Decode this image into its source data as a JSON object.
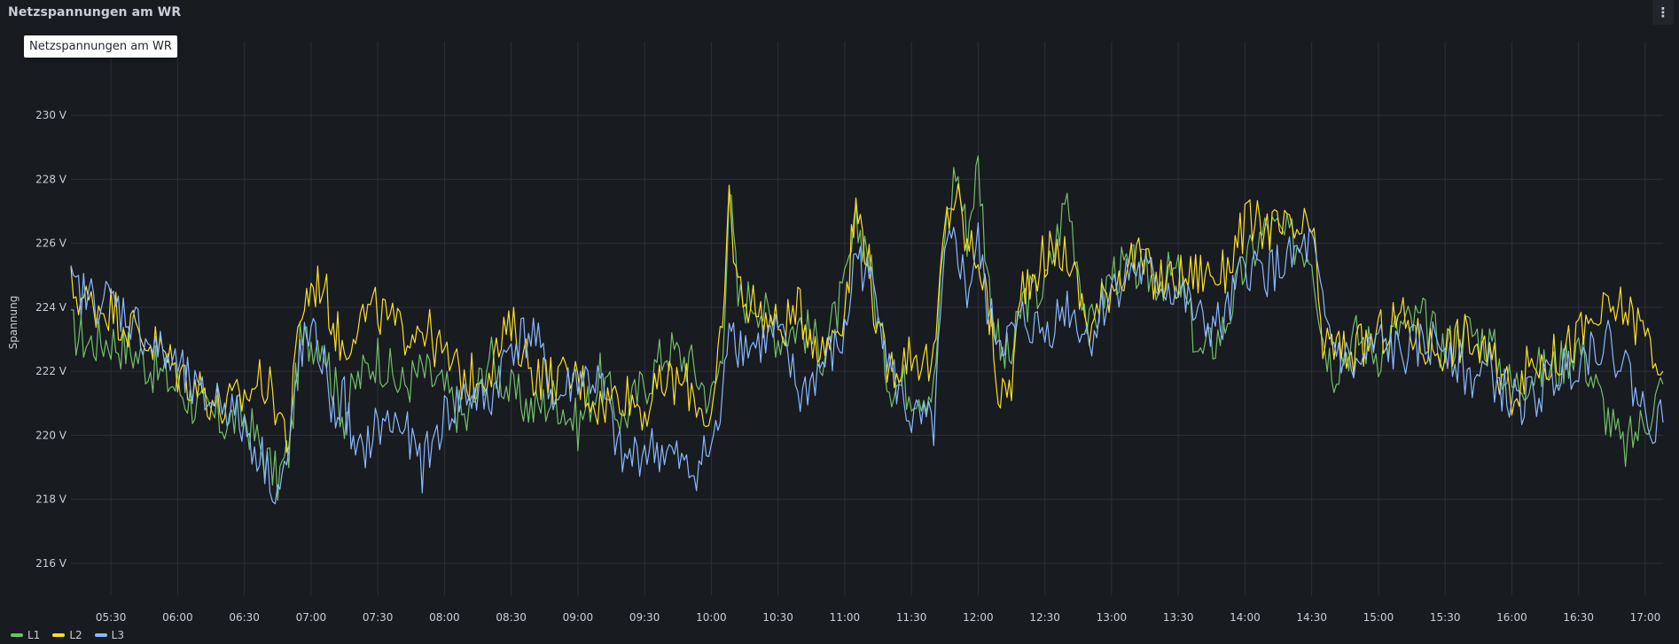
{
  "panel": {
    "title": "Netzspannungen am WR",
    "menu_icon": "⋮",
    "tooltip": "Netzspannungen am WR"
  },
  "chart_data": {
    "type": "line",
    "ylabel": "Spannung",
    "unit": "V",
    "ylim": [
      215,
      232.3
    ],
    "y_ticks": [
      216,
      218,
      220,
      222,
      224,
      226,
      228,
      230
    ],
    "x_ticks": [
      "05:30",
      "06:00",
      "06:30",
      "07:00",
      "07:30",
      "08:00",
      "08:30",
      "09:00",
      "09:30",
      "10:00",
      "10:30",
      "11:00",
      "11:30",
      "12:00",
      "12:30",
      "13:00",
      "13:30",
      "14:00",
      "14:30",
      "15:00",
      "15:30",
      "16:00",
      "16:30",
      "17:00"
    ],
    "xlim": [
      "05:12",
      "17:08"
    ],
    "grid": true,
    "legend_position": "bottom-left",
    "series": [
      {
        "name": "L1",
        "color": "#73bf69",
        "points": [
          [
            "05:12",
            223.3
          ],
          [
            "05:20",
            222.9
          ],
          [
            "05:30",
            223.0
          ],
          [
            "05:40",
            222.6
          ],
          [
            "05:50",
            222.0
          ],
          [
            "06:00",
            221.5
          ],
          [
            "06:10",
            220.8
          ],
          [
            "06:20",
            220.4
          ],
          [
            "06:30",
            220.6
          ],
          [
            "06:38",
            219.5
          ],
          [
            "06:45",
            218.6
          ],
          [
            "06:50",
            219.5
          ],
          [
            "06:55",
            222.8
          ],
          [
            "07:00",
            223.0
          ],
          [
            "07:05",
            223.1
          ],
          [
            "07:10",
            221.6
          ],
          [
            "07:15",
            220.6
          ],
          [
            "07:20",
            221.6
          ],
          [
            "07:30",
            222.5
          ],
          [
            "07:40",
            221.5
          ],
          [
            "07:50",
            222.0
          ],
          [
            "08:00",
            221.4
          ],
          [
            "08:10",
            220.4
          ],
          [
            "08:20",
            222.5
          ],
          [
            "08:30",
            221.3
          ],
          [
            "08:40",
            220.8
          ],
          [
            "08:50",
            221.2
          ],
          [
            "09:00",
            220.3
          ],
          [
            "09:10",
            221.8
          ],
          [
            "09:20",
            220.5
          ],
          [
            "09:30",
            221.6
          ],
          [
            "09:40",
            222.7
          ],
          [
            "09:50",
            222.3
          ],
          [
            "10:00",
            221.1
          ],
          [
            "10:05",
            222.5
          ],
          [
            "10:08",
            227.8
          ],
          [
            "10:12",
            224.2
          ],
          [
            "10:20",
            224.3
          ],
          [
            "10:30",
            223.1
          ],
          [
            "10:40",
            223.5
          ],
          [
            "10:50",
            222.6
          ],
          [
            "11:00",
            224.5
          ],
          [
            "11:05",
            226.5
          ],
          [
            "11:10",
            226.0
          ],
          [
            "11:15",
            223.5
          ],
          [
            "11:20",
            221.7
          ],
          [
            "11:30",
            221.5
          ],
          [
            "11:40",
            221.4
          ],
          [
            "11:45",
            226.4
          ],
          [
            "11:50",
            228.4
          ],
          [
            "11:55",
            226.3
          ],
          [
            "12:00",
            228.5
          ],
          [
            "12:05",
            224.6
          ],
          [
            "12:10",
            222.5
          ],
          [
            "12:15",
            222.4
          ],
          [
            "12:20",
            224.2
          ],
          [
            "12:30",
            224.6
          ],
          [
            "12:40",
            227.5
          ],
          [
            "12:50",
            223.2
          ],
          [
            "13:00",
            225.1
          ],
          [
            "13:10",
            225.2
          ],
          [
            "13:20",
            224.9
          ],
          [
            "13:30",
            225.0
          ],
          [
            "13:40",
            222.4
          ],
          [
            "13:50",
            223.3
          ],
          [
            "14:00",
            225.3
          ],
          [
            "14:10",
            226.5
          ],
          [
            "14:20",
            226.1
          ],
          [
            "14:30",
            225.8
          ],
          [
            "14:35",
            223.1
          ],
          [
            "14:40",
            222.1
          ],
          [
            "14:50",
            223.1
          ],
          [
            "15:00",
            222.6
          ],
          [
            "15:10",
            223.4
          ],
          [
            "15:20",
            223.6
          ],
          [
            "15:30",
            222.7
          ],
          [
            "15:40",
            223.3
          ],
          [
            "15:50",
            222.9
          ],
          [
            "16:00",
            221.5
          ],
          [
            "16:10",
            222.0
          ],
          [
            "16:20",
            222.1
          ],
          [
            "16:30",
            222.9
          ],
          [
            "16:40",
            221.1
          ],
          [
            "16:50",
            219.5
          ],
          [
            "17:00",
            220.5
          ],
          [
            "17:08",
            221.6
          ]
        ]
      },
      {
        "name": "L2",
        "color": "#fade2a",
        "points": [
          [
            "05:12",
            224.6
          ],
          [
            "05:20",
            224.1
          ],
          [
            "05:30",
            224.0
          ],
          [
            "05:40",
            223.3
          ],
          [
            "05:50",
            222.8
          ],
          [
            "06:00",
            222.0
          ],
          [
            "06:10",
            221.5
          ],
          [
            "06:20",
            220.8
          ],
          [
            "06:30",
            221.2
          ],
          [
            "06:38",
            221.8
          ],
          [
            "06:45",
            220.9
          ],
          [
            "06:50",
            219.8
          ],
          [
            "06:55",
            223.8
          ],
          [
            "07:00",
            224.6
          ],
          [
            "07:05",
            224.8
          ],
          [
            "07:10",
            223.5
          ],
          [
            "07:15",
            222.6
          ],
          [
            "07:20",
            223.6
          ],
          [
            "07:30",
            223.9
          ],
          [
            "07:40",
            223.2
          ],
          [
            "07:50",
            223.5
          ],
          [
            "08:00",
            222.4
          ],
          [
            "08:10",
            221.7
          ],
          [
            "08:20",
            222.1
          ],
          [
            "08:30",
            223.4
          ],
          [
            "08:40",
            222.0
          ],
          [
            "08:50",
            221.7
          ],
          [
            "09:00",
            221.8
          ],
          [
            "09:10",
            220.9
          ],
          [
            "09:20",
            221.4
          ],
          [
            "09:30",
            220.8
          ],
          [
            "09:40",
            221.7
          ],
          [
            "09:50",
            221.5
          ],
          [
            "10:00",
            220.4
          ],
          [
            "10:05",
            223.2
          ],
          [
            "10:08",
            227.4
          ],
          [
            "10:12",
            224.6
          ],
          [
            "10:20",
            224.0
          ],
          [
            "10:30",
            223.3
          ],
          [
            "10:40",
            223.9
          ],
          [
            "10:50",
            222.6
          ],
          [
            "11:00",
            224.0
          ],
          [
            "11:05",
            227.1
          ],
          [
            "11:10",
            225.9
          ],
          [
            "11:15",
            223.0
          ],
          [
            "11:20",
            222.1
          ],
          [
            "11:30",
            222.6
          ],
          [
            "11:40",
            222.1
          ],
          [
            "11:45",
            226.5
          ],
          [
            "11:50",
            227.6
          ],
          [
            "11:55",
            225.9
          ],
          [
            "12:00",
            225.7
          ],
          [
            "12:05",
            223.7
          ],
          [
            "12:10",
            221.0
          ],
          [
            "12:15",
            221.7
          ],
          [
            "12:20",
            224.7
          ],
          [
            "12:30",
            225.6
          ],
          [
            "12:40",
            225.7
          ],
          [
            "12:50",
            223.3
          ],
          [
            "13:00",
            224.8
          ],
          [
            "13:10",
            225.6
          ],
          [
            "13:20",
            224.8
          ],
          [
            "13:30",
            224.9
          ],
          [
            "13:40",
            225.1
          ],
          [
            "13:50",
            225.0
          ],
          [
            "14:00",
            226.6
          ],
          [
            "14:10",
            226.5
          ],
          [
            "14:20",
            226.3
          ],
          [
            "14:30",
            226.4
          ],
          [
            "14:35",
            222.9
          ],
          [
            "14:40",
            222.7
          ],
          [
            "14:50",
            222.6
          ],
          [
            "15:00",
            223.1
          ],
          [
            "15:10",
            223.7
          ],
          [
            "15:20",
            222.8
          ],
          [
            "15:30",
            222.8
          ],
          [
            "15:40",
            223.1
          ],
          [
            "15:50",
            222.3
          ],
          [
            "16:00",
            221.4
          ],
          [
            "16:10",
            222.3
          ],
          [
            "16:20",
            222.4
          ],
          [
            "16:30",
            223.1
          ],
          [
            "16:40",
            223.7
          ],
          [
            "16:50",
            224.0
          ],
          [
            "17:00",
            223.2
          ],
          [
            "17:08",
            222.0
          ]
        ]
      },
      {
        "name": "L3",
        "color": "#8ab8ff",
        "points": [
          [
            "05:12",
            224.6
          ],
          [
            "05:20",
            224.3
          ],
          [
            "05:30",
            224.2
          ],
          [
            "05:40",
            223.6
          ],
          [
            "05:50",
            222.7
          ],
          [
            "06:00",
            222.1
          ],
          [
            "06:10",
            221.1
          ],
          [
            "06:20",
            221.2
          ],
          [
            "06:30",
            220.2
          ],
          [
            "06:38",
            219.3
          ],
          [
            "06:45",
            218.3
          ],
          [
            "06:50",
            219.3
          ],
          [
            "06:55",
            222.7
          ],
          [
            "07:00",
            223.0
          ],
          [
            "07:05",
            222.5
          ],
          [
            "07:10",
            220.6
          ],
          [
            "07:15",
            221.2
          ],
          [
            "07:20",
            219.1
          ],
          [
            "07:30",
            220.3
          ],
          [
            "07:40",
            220.4
          ],
          [
            "07:50",
            219.0
          ],
          [
            "08:00",
            220.6
          ],
          [
            "08:10",
            221.3
          ],
          [
            "08:20",
            221.0
          ],
          [
            "08:30",
            222.9
          ],
          [
            "08:40",
            223.2
          ],
          [
            "08:50",
            221.0
          ],
          [
            "09:00",
            221.9
          ],
          [
            "09:10",
            221.6
          ],
          [
            "09:20",
            219.1
          ],
          [
            "09:30",
            219.6
          ],
          [
            "09:40",
            219.5
          ],
          [
            "09:50",
            218.8
          ],
          [
            "10:00",
            219.6
          ],
          [
            "10:05",
            220.8
          ],
          [
            "10:08",
            224.0
          ],
          [
            "10:12",
            222.9
          ],
          [
            "10:20",
            222.8
          ],
          [
            "10:30",
            223.2
          ],
          [
            "10:40",
            221.2
          ],
          [
            "10:50",
            222.2
          ],
          [
            "11:00",
            223.0
          ],
          [
            "11:05",
            225.8
          ],
          [
            "11:10",
            224.9
          ],
          [
            "11:15",
            224.4
          ],
          [
            "11:20",
            222.1
          ],
          [
            "11:30",
            220.5
          ],
          [
            "11:40",
            220.2
          ],
          [
            "11:45",
            225.4
          ],
          [
            "11:50",
            226.1
          ],
          [
            "11:55",
            224.4
          ],
          [
            "12:00",
            226.0
          ],
          [
            "12:05",
            223.6
          ],
          [
            "12:10",
            223.1
          ],
          [
            "12:15",
            223.0
          ],
          [
            "12:20",
            223.6
          ],
          [
            "12:30",
            223.2
          ],
          [
            "12:40",
            224.1
          ],
          [
            "12:50",
            223.0
          ],
          [
            "13:00",
            224.6
          ],
          [
            "13:10",
            225.2
          ],
          [
            "13:20",
            224.8
          ],
          [
            "13:30",
            224.5
          ],
          [
            "13:40",
            223.5
          ],
          [
            "13:50",
            223.4
          ],
          [
            "14:00",
            225.3
          ],
          [
            "14:10",
            225.1
          ],
          [
            "14:20",
            225.4
          ],
          [
            "14:30",
            226.0
          ],
          [
            "14:35",
            223.8
          ],
          [
            "14:40",
            222.8
          ],
          [
            "14:50",
            222.0
          ],
          [
            "15:00",
            222.9
          ],
          [
            "15:10",
            222.5
          ],
          [
            "15:20",
            222.8
          ],
          [
            "15:30",
            223.0
          ],
          [
            "15:40",
            221.8
          ],
          [
            "15:50",
            222.0
          ],
          [
            "16:00",
            221.0
          ],
          [
            "16:10",
            221.2
          ],
          [
            "16:20",
            221.9
          ],
          [
            "16:30",
            222.4
          ],
          [
            "16:40",
            223.0
          ],
          [
            "16:50",
            222.4
          ],
          [
            "17:00",
            220.6
          ],
          [
            "17:08",
            220.4
          ]
        ]
      }
    ]
  }
}
